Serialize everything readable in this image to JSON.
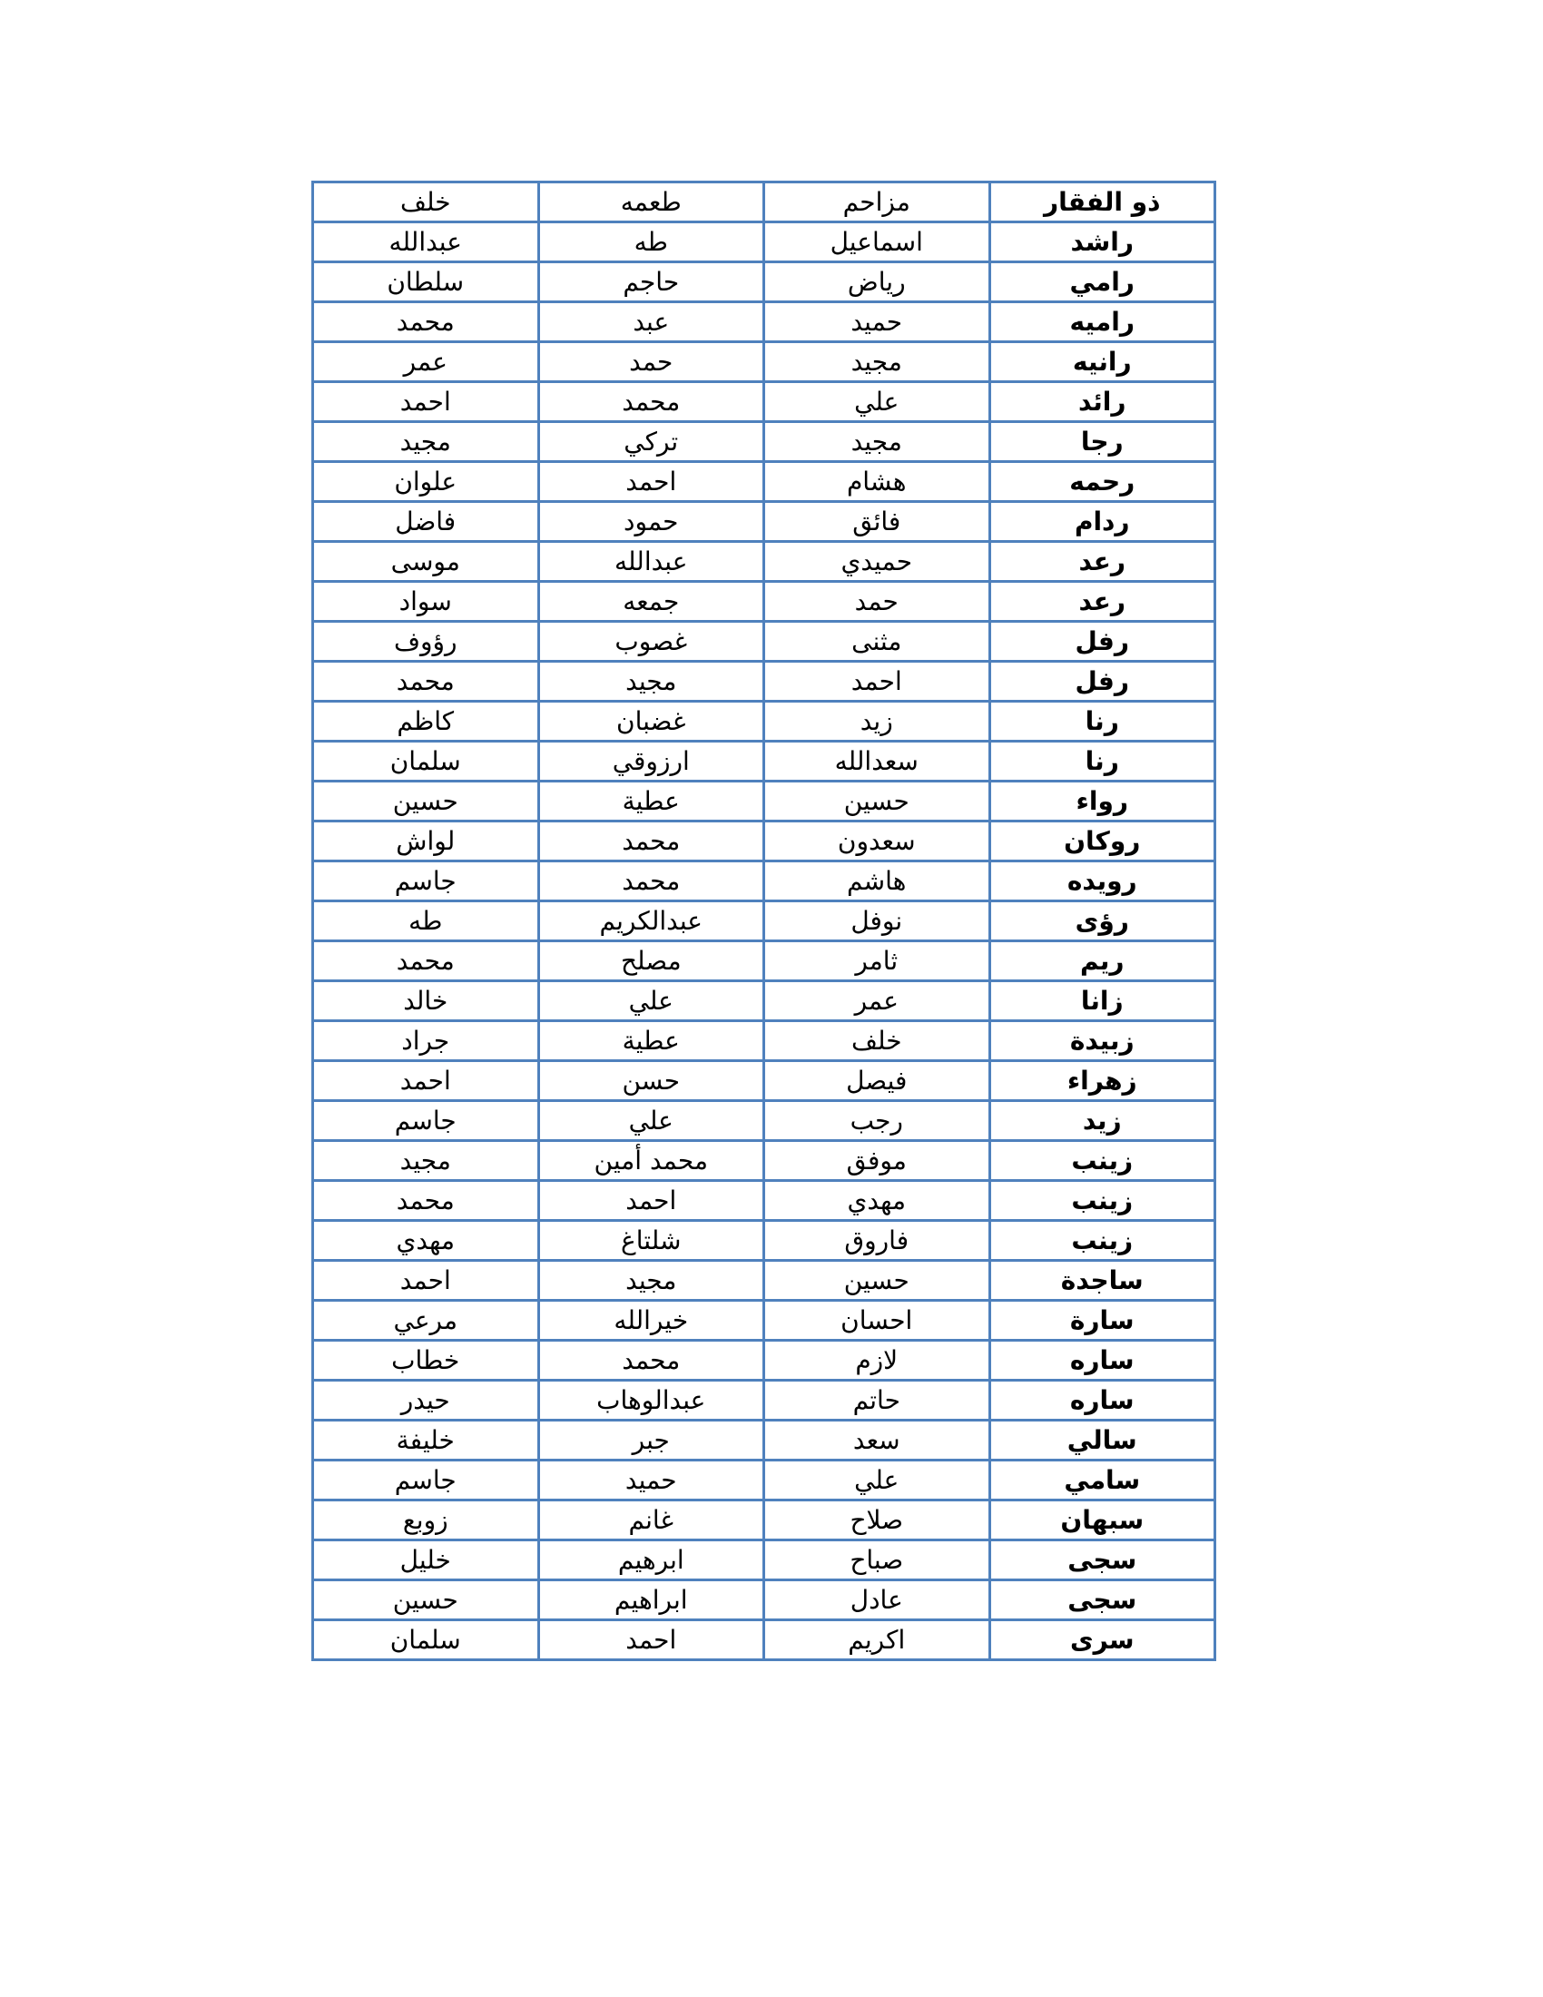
{
  "table": {
    "rows": [
      [
        "ذو الفقار",
        "مزاحم",
        "طعمه",
        "خلف"
      ],
      [
        "راشد",
        "اسماعيل",
        "طه",
        "عبدالله"
      ],
      [
        "رامي",
        "رياض",
        "حاجم",
        "سلطان"
      ],
      [
        "راميه",
        "حميد",
        "عبد",
        "محمد"
      ],
      [
        "رانيه",
        "مجيد",
        "حمد",
        "عمر"
      ],
      [
        "رائد",
        "علي",
        "محمد",
        "احمد"
      ],
      [
        "رجا",
        "مجيد",
        "تركي",
        "مجيد"
      ],
      [
        "رحمه",
        "هشام",
        "احمد",
        "علوان"
      ],
      [
        "ردام",
        "فائق",
        "حمود",
        "فاضل"
      ],
      [
        "رعد",
        "حميدي",
        "عبدالله",
        "موسى"
      ],
      [
        "رعد",
        "حمد",
        "جمعه",
        "سواد"
      ],
      [
        "رفل",
        "مثنى",
        "غصوب",
        "رؤوف"
      ],
      [
        "رفل",
        "احمد",
        "مجيد",
        "محمد"
      ],
      [
        "رنا",
        "زيد",
        "غضبان",
        "كاظم"
      ],
      [
        "رنا",
        "سعدالله",
        "ارزوقي",
        "سلمان"
      ],
      [
        "رواء",
        "حسين",
        "عطية",
        "حسين"
      ],
      [
        "روكان",
        "سعدون",
        "محمد",
        "لواش"
      ],
      [
        "رويده",
        "هاشم",
        "محمد",
        "جاسم"
      ],
      [
        "رؤى",
        "نوفل",
        "عبدالكريم",
        "طه"
      ],
      [
        "ريم",
        "ثامر",
        "مصلح",
        "محمد"
      ],
      [
        "زانا",
        "عمر",
        "علي",
        "خالد"
      ],
      [
        "زبيدة",
        "خلف",
        "عطية",
        "جراد"
      ],
      [
        "زهراء",
        "فيصل",
        "حسن",
        "احمد"
      ],
      [
        "زيد",
        "رجب",
        "علي",
        "جاسم"
      ],
      [
        "زينب",
        "موفق",
        "محمد أمين",
        "مجيد"
      ],
      [
        "زينب",
        "مهدي",
        "احمد",
        "محمد"
      ],
      [
        "زينب",
        "فاروق",
        "شلتاغ",
        "مهدي"
      ],
      [
        "ساجدة",
        "حسين",
        "مجيد",
        "احمد"
      ],
      [
        "سارة",
        "احسان",
        "خيرالله",
        "مرعي"
      ],
      [
        "ساره",
        "لازم",
        "محمد",
        "خطاب"
      ],
      [
        "ساره",
        "حاتم",
        "عبدالوهاب",
        "حيدر"
      ],
      [
        "سالي",
        "سعد",
        "جبر",
        "خليفة"
      ],
      [
        "سامي",
        "علي",
        "حميد",
        "جاسم"
      ],
      [
        "سبهان",
        "صلاح",
        "غانم",
        "زوبع"
      ],
      [
        "سجى",
        "صباح",
        "ابرهيم",
        "خليل"
      ],
      [
        "سجى",
        "عادل",
        "ابراهيم",
        "حسين"
      ],
      [
        "سرى",
        "اكريم",
        "احمد",
        "سلمان"
      ]
    ]
  },
  "colors": {
    "border": "#4f81bd"
  }
}
